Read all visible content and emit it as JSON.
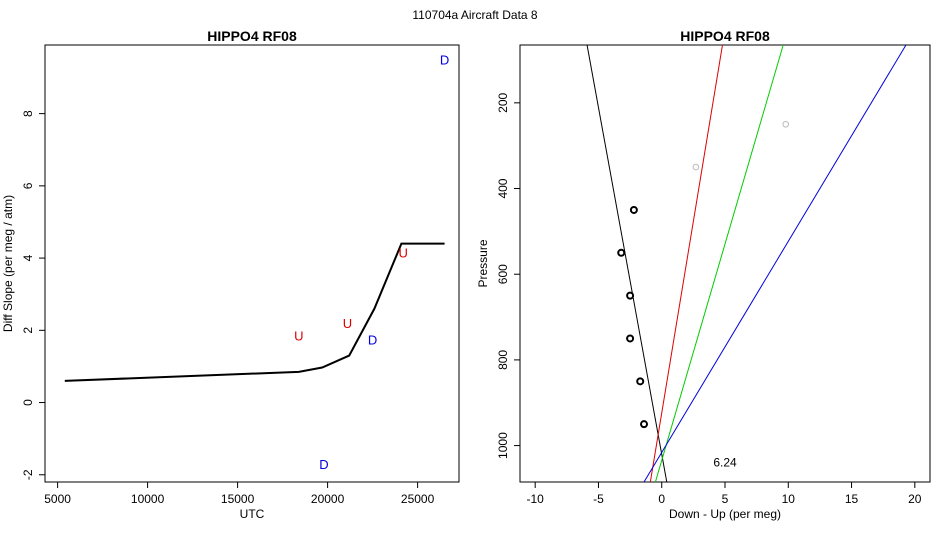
{
  "suptitle": "110704a    Aircraft Data 8",
  "chart_data": [
    {
      "type": "line",
      "title": "HIPPO4 RF08",
      "xlabel": "UTC",
      "ylabel": "Diff Slope (per meg / atm)",
      "xlim": [
        4300,
        27300
      ],
      "ylim": [
        -2.2,
        9.9
      ],
      "xticks": [
        5000,
        10000,
        15000,
        20000,
        25000
      ],
      "yticks": [
        -2,
        0,
        2,
        4,
        6,
        8
      ],
      "line": {
        "color": "#000000",
        "x": [
          5400,
          18400,
          19700,
          21200,
          22600,
          24100,
          26500
        ],
        "y": [
          0.6,
          0.85,
          0.97,
          1.3,
          2.6,
          4.4,
          4.4
        ]
      },
      "markers": [
        {
          "label": "U",
          "x": 18400,
          "y": 1.85,
          "color": "#dd0000"
        },
        {
          "label": "U",
          "x": 21100,
          "y": 2.2,
          "color": "#dd0000"
        },
        {
          "label": "U",
          "x": 24200,
          "y": 4.15,
          "color": "#dd0000"
        },
        {
          "label": "D",
          "x": 19800,
          "y": -1.7,
          "color": "#0000dd"
        },
        {
          "label": "D",
          "x": 22500,
          "y": 1.75,
          "color": "#0000dd"
        },
        {
          "label": "D",
          "x": 26500,
          "y": 9.5,
          "color": "#0000dd"
        }
      ]
    },
    {
      "type": "scatter",
      "title": "HIPPO4 RF08",
      "xlabel": "Down - Up (per meg)",
      "ylabel": "Pressure",
      "xlim": [
        -11.2,
        21.2
      ],
      "ylim": [
        1085,
        65
      ],
      "y_reversed": true,
      "xticks": [
        -10,
        -5,
        0,
        5,
        10,
        15,
        20
      ],
      "yticks": [
        200,
        400,
        600,
        800,
        1000
      ],
      "points": [
        {
          "x": -2.2,
          "y": 450,
          "color": "#000000"
        },
        {
          "x": -3.2,
          "y": 550,
          "color": "#000000"
        },
        {
          "x": -2.5,
          "y": 650,
          "color": "#000000"
        },
        {
          "x": -2.5,
          "y": 750,
          "color": "#000000"
        },
        {
          "x": -1.7,
          "y": 850,
          "color": "#000000"
        },
        {
          "x": -1.4,
          "y": 950,
          "color": "#000000"
        },
        {
          "x": 2.7,
          "y": 350,
          "color": "#bbbbbb"
        },
        {
          "x": 9.8,
          "y": 250,
          "color": "#bbbbbb"
        }
      ],
      "lines": [
        {
          "color": "#000000",
          "x": [
            -5.9,
            0.4
          ],
          "y": [
            65,
            1085
          ]
        },
        {
          "color": "#dd0000",
          "x": [
            4.8,
            -0.9
          ],
          "y": [
            65,
            1085
          ]
        },
        {
          "color": "#00cc00",
          "x": [
            9.6,
            -0.5
          ],
          "y": [
            65,
            1085
          ]
        },
        {
          "color": "#0000dd",
          "x": [
            19.3,
            -1.4
          ],
          "y": [
            65,
            1085
          ]
        }
      ],
      "annotation": {
        "text": "6.24",
        "x": 5.0,
        "y": 1040
      }
    }
  ]
}
